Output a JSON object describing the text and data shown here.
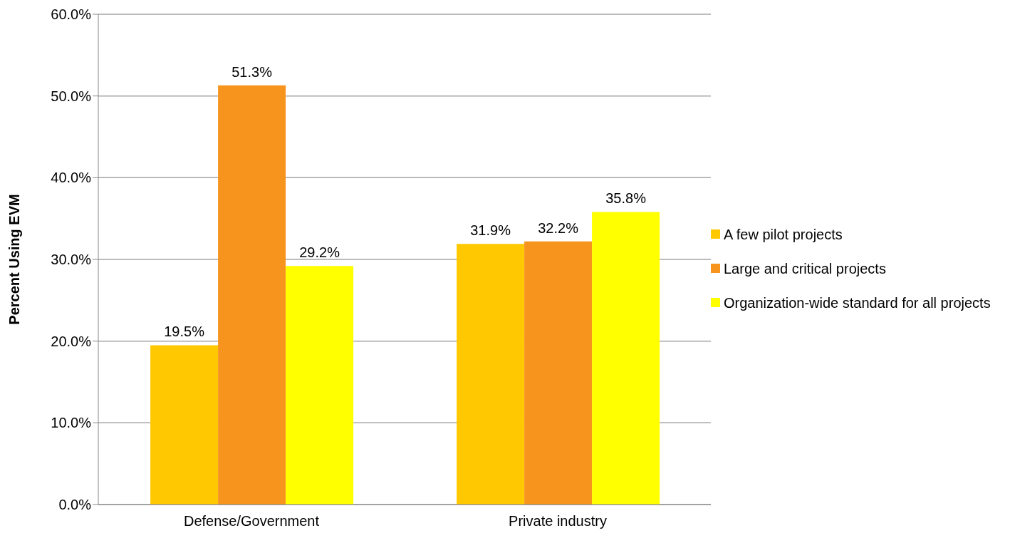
{
  "chart_data": {
    "type": "bar",
    "ylabel": "Percent Using EVM",
    "categories": [
      "Defense/Government",
      "Private industry"
    ],
    "series": [
      {
        "name": "A few pilot projects",
        "color": "#ffc800",
        "values": [
          19.5,
          31.9
        ],
        "value_labels": [
          "19.5%",
          "31.9%"
        ]
      },
      {
        "name": "Large and critical projects",
        "color": "#f7941d",
        "values": [
          51.3,
          32.2
        ],
        "value_labels": [
          "51.3%",
          "32.2%"
        ]
      },
      {
        "name": "Organization-wide standard for all projects",
        "color": "#ffff00",
        "values": [
          29.2,
          35.8
        ],
        "value_labels": [
          "29.2%",
          "35.8%"
        ]
      }
    ],
    "ylim": [
      0,
      60
    ],
    "yticks": [
      {
        "value": 0,
        "label": "0.0%"
      },
      {
        "value": 10,
        "label": "10.0%"
      },
      {
        "value": 20,
        "label": "20.0%"
      },
      {
        "value": 30,
        "label": "30.0%"
      },
      {
        "value": 40,
        "label": "40.0%"
      },
      {
        "value": 50,
        "label": "50.0%"
      },
      {
        "value": 60,
        "label": "60.0%"
      }
    ],
    "grid": "y",
    "legend": "right"
  }
}
